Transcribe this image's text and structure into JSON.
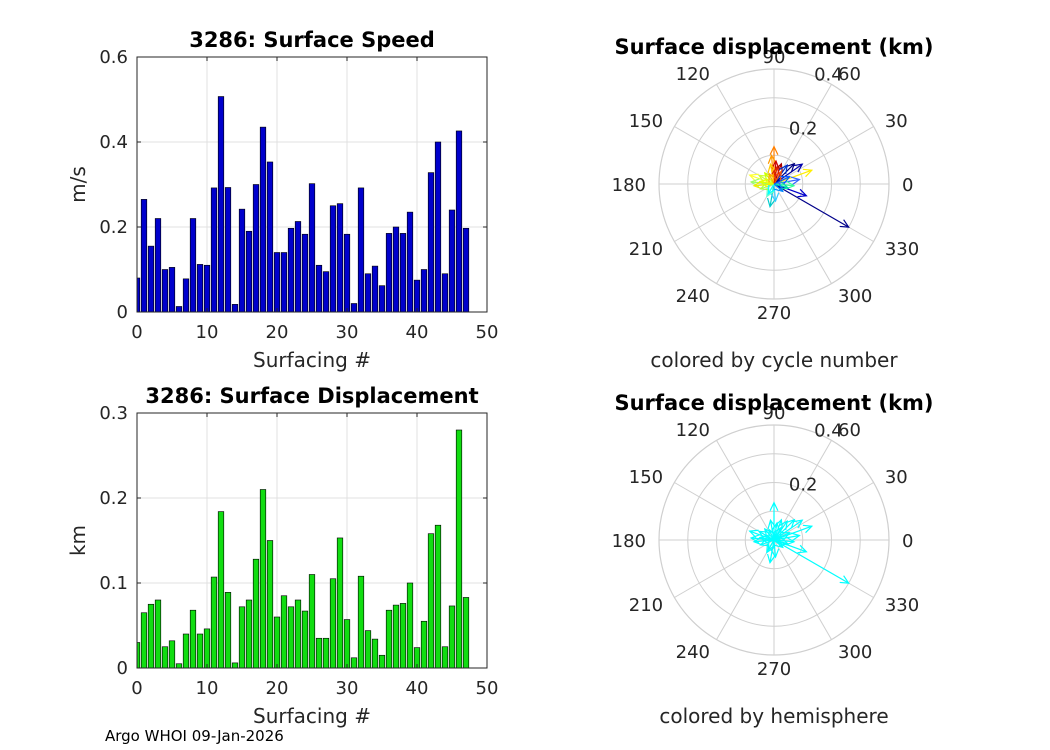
{
  "footer": "Argo WHOI 09-Jan-2026",
  "chart_data": [
    {
      "type": "bar",
      "title": "3286: Surface Speed",
      "xlabel": "Surfacing #",
      "ylabel": "m/s",
      "xlim": [
        0,
        50
      ],
      "ylim": [
        0,
        0.6
      ],
      "xticks": [
        0,
        10,
        20,
        30,
        40,
        50
      ],
      "yticks": [
        0,
        0.2,
        0.4,
        0.6
      ],
      "ytick_labels": [
        "0",
        "0.2",
        "0.4",
        "0.6"
      ],
      "grid": true,
      "bar_color": "#0000cc",
      "x": [
        0,
        1,
        2,
        3,
        4,
        5,
        6,
        7,
        8,
        9,
        10,
        11,
        12,
        13,
        14,
        15,
        16,
        17,
        18,
        19,
        20,
        21,
        22,
        23,
        24,
        25,
        26,
        27,
        28,
        29,
        30,
        31,
        32,
        33,
        34,
        35,
        36,
        37,
        38,
        39,
        40,
        41,
        42,
        43,
        44,
        45,
        46,
        47
      ],
      "values": [
        0.08,
        0.265,
        0.155,
        0.22,
        0.1,
        0.105,
        0.013,
        0.078,
        0.22,
        0.112,
        0.11,
        0.292,
        0.507,
        0.293,
        0.018,
        0.242,
        0.19,
        0.3,
        0.435,
        0.353,
        0.14,
        0.14,
        0.197,
        0.213,
        0.183,
        0.302,
        0.11,
        0.095,
        0.25,
        0.255,
        0.183,
        0.02,
        0.292,
        0.09,
        0.108,
        0.062,
        0.185,
        0.2,
        0.185,
        0.235,
        0.075,
        0.1,
        0.328,
        0.4,
        0.09,
        0.24,
        0.426,
        0.197
      ]
    },
    {
      "type": "polar-quiver",
      "title": "Surface displacement (km)",
      "caption": "colored by cycle number",
      "rlim": [
        0,
        0.4
      ],
      "rtick_labels": [
        "0.2",
        "0.4"
      ],
      "angle_labels": [
        "0",
        "30",
        "60",
        "90",
        "120",
        "150",
        "180",
        "210",
        "240",
        "270",
        "300",
        "330"
      ],
      "vectors": [
        {
          "angle": 90,
          "r": 0.13,
          "color": "#ff7f00"
        },
        {
          "angle": 95,
          "r": 0.1,
          "color": "#ff9900"
        },
        {
          "angle": 85,
          "r": 0.08,
          "color": "#cc0000"
        },
        {
          "angle": 100,
          "r": 0.07,
          "color": "#ffcc00"
        },
        {
          "angle": 70,
          "r": 0.075,
          "color": "#aa0000"
        },
        {
          "angle": 160,
          "r": 0.09,
          "color": "#ffff33"
        },
        {
          "angle": 175,
          "r": 0.08,
          "color": "#99ff66"
        },
        {
          "angle": 185,
          "r": 0.07,
          "color": "#eeee00"
        },
        {
          "angle": 150,
          "r": 0.06,
          "color": "#ccff33"
        },
        {
          "angle": 20,
          "r": 0.14,
          "color": "#ffee00"
        },
        {
          "angle": 35,
          "r": 0.12,
          "color": "#0000aa"
        },
        {
          "angle": 45,
          "r": 0.1,
          "color": "#000080"
        },
        {
          "angle": 10,
          "r": 0.09,
          "color": "#3366ff"
        },
        {
          "angle": 55,
          "r": 0.08,
          "color": "#0033cc"
        },
        {
          "angle": -30,
          "r": 0.3,
          "color": "#00008b"
        },
        {
          "angle": -20,
          "r": 0.12,
          "color": "#0000cc"
        },
        {
          "angle": -5,
          "r": 0.07,
          "color": "#33ff99"
        },
        {
          "angle": -15,
          "r": 0.05,
          "color": "#00ddaa"
        },
        {
          "angle": -100,
          "r": 0.08,
          "color": "#00cccc"
        },
        {
          "angle": -85,
          "r": 0.06,
          "color": "#33ccff"
        },
        {
          "angle": -120,
          "r": 0.05,
          "color": "#66ffcc"
        },
        {
          "angle": 130,
          "r": 0.05,
          "color": "#ccff00"
        },
        {
          "angle": 115,
          "r": 0.04,
          "color": "#ffaa00"
        },
        {
          "angle": 200,
          "r": 0.05,
          "color": "#aaff44"
        },
        {
          "angle": 240,
          "r": 0.04,
          "color": "#00ffff"
        },
        {
          "angle": 60,
          "r": 0.05,
          "color": "#ff5500"
        },
        {
          "angle": 80,
          "r": 0.06,
          "color": "#dd2200"
        },
        {
          "angle": 170,
          "r": 0.05,
          "color": "#e6ff00"
        },
        {
          "angle": 25,
          "r": 0.06,
          "color": "#0055ff"
        },
        {
          "angle": -40,
          "r": 0.04,
          "color": "#0088ff"
        }
      ]
    },
    {
      "type": "bar",
      "title": "3286: Surface Displacement",
      "xlabel": "Surfacing #",
      "ylabel": "km",
      "xlim": [
        0,
        50
      ],
      "ylim": [
        0,
        0.3
      ],
      "xticks": [
        0,
        10,
        20,
        30,
        40,
        50
      ],
      "yticks": [
        0,
        0.1,
        0.2,
        0.3
      ],
      "ytick_labels": [
        "0",
        "0.1",
        "0.2",
        "0.3"
      ],
      "grid": true,
      "bar_color": "#11dd11",
      "x": [
        0,
        1,
        2,
        3,
        4,
        5,
        6,
        7,
        8,
        9,
        10,
        11,
        12,
        13,
        14,
        15,
        16,
        17,
        18,
        19,
        20,
        21,
        22,
        23,
        24,
        25,
        26,
        27,
        28,
        29,
        30,
        31,
        32,
        33,
        34,
        35,
        36,
        37,
        38,
        39,
        40,
        41,
        42,
        43,
        44,
        45,
        46,
        47
      ],
      "values": [
        0.03,
        0.065,
        0.075,
        0.08,
        0.025,
        0.032,
        0.005,
        0.04,
        0.068,
        0.04,
        0.046,
        0.107,
        0.184,
        0.089,
        0.006,
        0.072,
        0.08,
        0.128,
        0.21,
        0.15,
        0.06,
        0.085,
        0.072,
        0.08,
        0.067,
        0.11,
        0.035,
        0.035,
        0.105,
        0.153,
        0.057,
        0.012,
        0.108,
        0.044,
        0.034,
        0.015,
        0.068,
        0.074,
        0.076,
        0.1,
        0.024,
        0.055,
        0.158,
        0.168,
        0.025,
        0.073,
        0.28,
        0.083
      ]
    },
    {
      "type": "polar-quiver",
      "title": "Surface displacement (km)",
      "caption": "colored by hemisphere",
      "rlim": [
        0,
        0.4
      ],
      "rtick_labels": [
        "0.2",
        "0.4"
      ],
      "angle_labels": [
        "0",
        "30",
        "60",
        "90",
        "120",
        "150",
        "180",
        "210",
        "240",
        "270",
        "300",
        "330"
      ],
      "vectors": [
        {
          "angle": -30,
          "r": 0.3,
          "color": "#00ffff"
        },
        {
          "angle": 20,
          "r": 0.14,
          "color": "#00ffff"
        },
        {
          "angle": 90,
          "r": 0.13,
          "color": "#00ffff"
        },
        {
          "angle": 160,
          "r": 0.09,
          "color": "#00ffff"
        },
        {
          "angle": 35,
          "r": 0.12,
          "color": "#00ffff"
        },
        {
          "angle": 45,
          "r": 0.1,
          "color": "#00ffff"
        },
        {
          "angle": 10,
          "r": 0.09,
          "color": "#00ffff"
        },
        {
          "angle": 175,
          "r": 0.08,
          "color": "#00ffff"
        },
        {
          "angle": -100,
          "r": 0.08,
          "color": "#00ffff"
        },
        {
          "angle": 70,
          "r": 0.075,
          "color": "#00ffff"
        },
        {
          "angle": -20,
          "r": 0.12,
          "color": "#00ffff"
        },
        {
          "angle": 185,
          "r": 0.07,
          "color": "#00ffff"
        },
        {
          "angle": 150,
          "r": 0.06,
          "color": "#00ffff"
        },
        {
          "angle": -85,
          "r": 0.06,
          "color": "#00ffff"
        },
        {
          "angle": 100,
          "r": 0.07,
          "color": "#00ffff"
        },
        {
          "angle": 55,
          "r": 0.08,
          "color": "#00ffff"
        },
        {
          "angle": -5,
          "r": 0.07,
          "color": "#00ffff"
        },
        {
          "angle": -15,
          "r": 0.05,
          "color": "#00ffff"
        },
        {
          "angle": 130,
          "r": 0.05,
          "color": "#00ffff"
        },
        {
          "angle": 200,
          "r": 0.05,
          "color": "#00ffff"
        },
        {
          "angle": 240,
          "r": 0.04,
          "color": "#00ffff"
        },
        {
          "angle": -120,
          "r": 0.05,
          "color": "#00ffff"
        },
        {
          "angle": 80,
          "r": 0.06,
          "color": "#00ffff"
        },
        {
          "angle": 25,
          "r": 0.06,
          "color": "#00ffff"
        },
        {
          "angle": -40,
          "r": 0.04,
          "color": "#00ffff"
        },
        {
          "angle": 115,
          "r": 0.04,
          "color": "#00ffff"
        },
        {
          "angle": 60,
          "r": 0.05,
          "color": "#00ffff"
        },
        {
          "angle": 170,
          "r": 0.05,
          "color": "#00ffff"
        }
      ]
    }
  ]
}
